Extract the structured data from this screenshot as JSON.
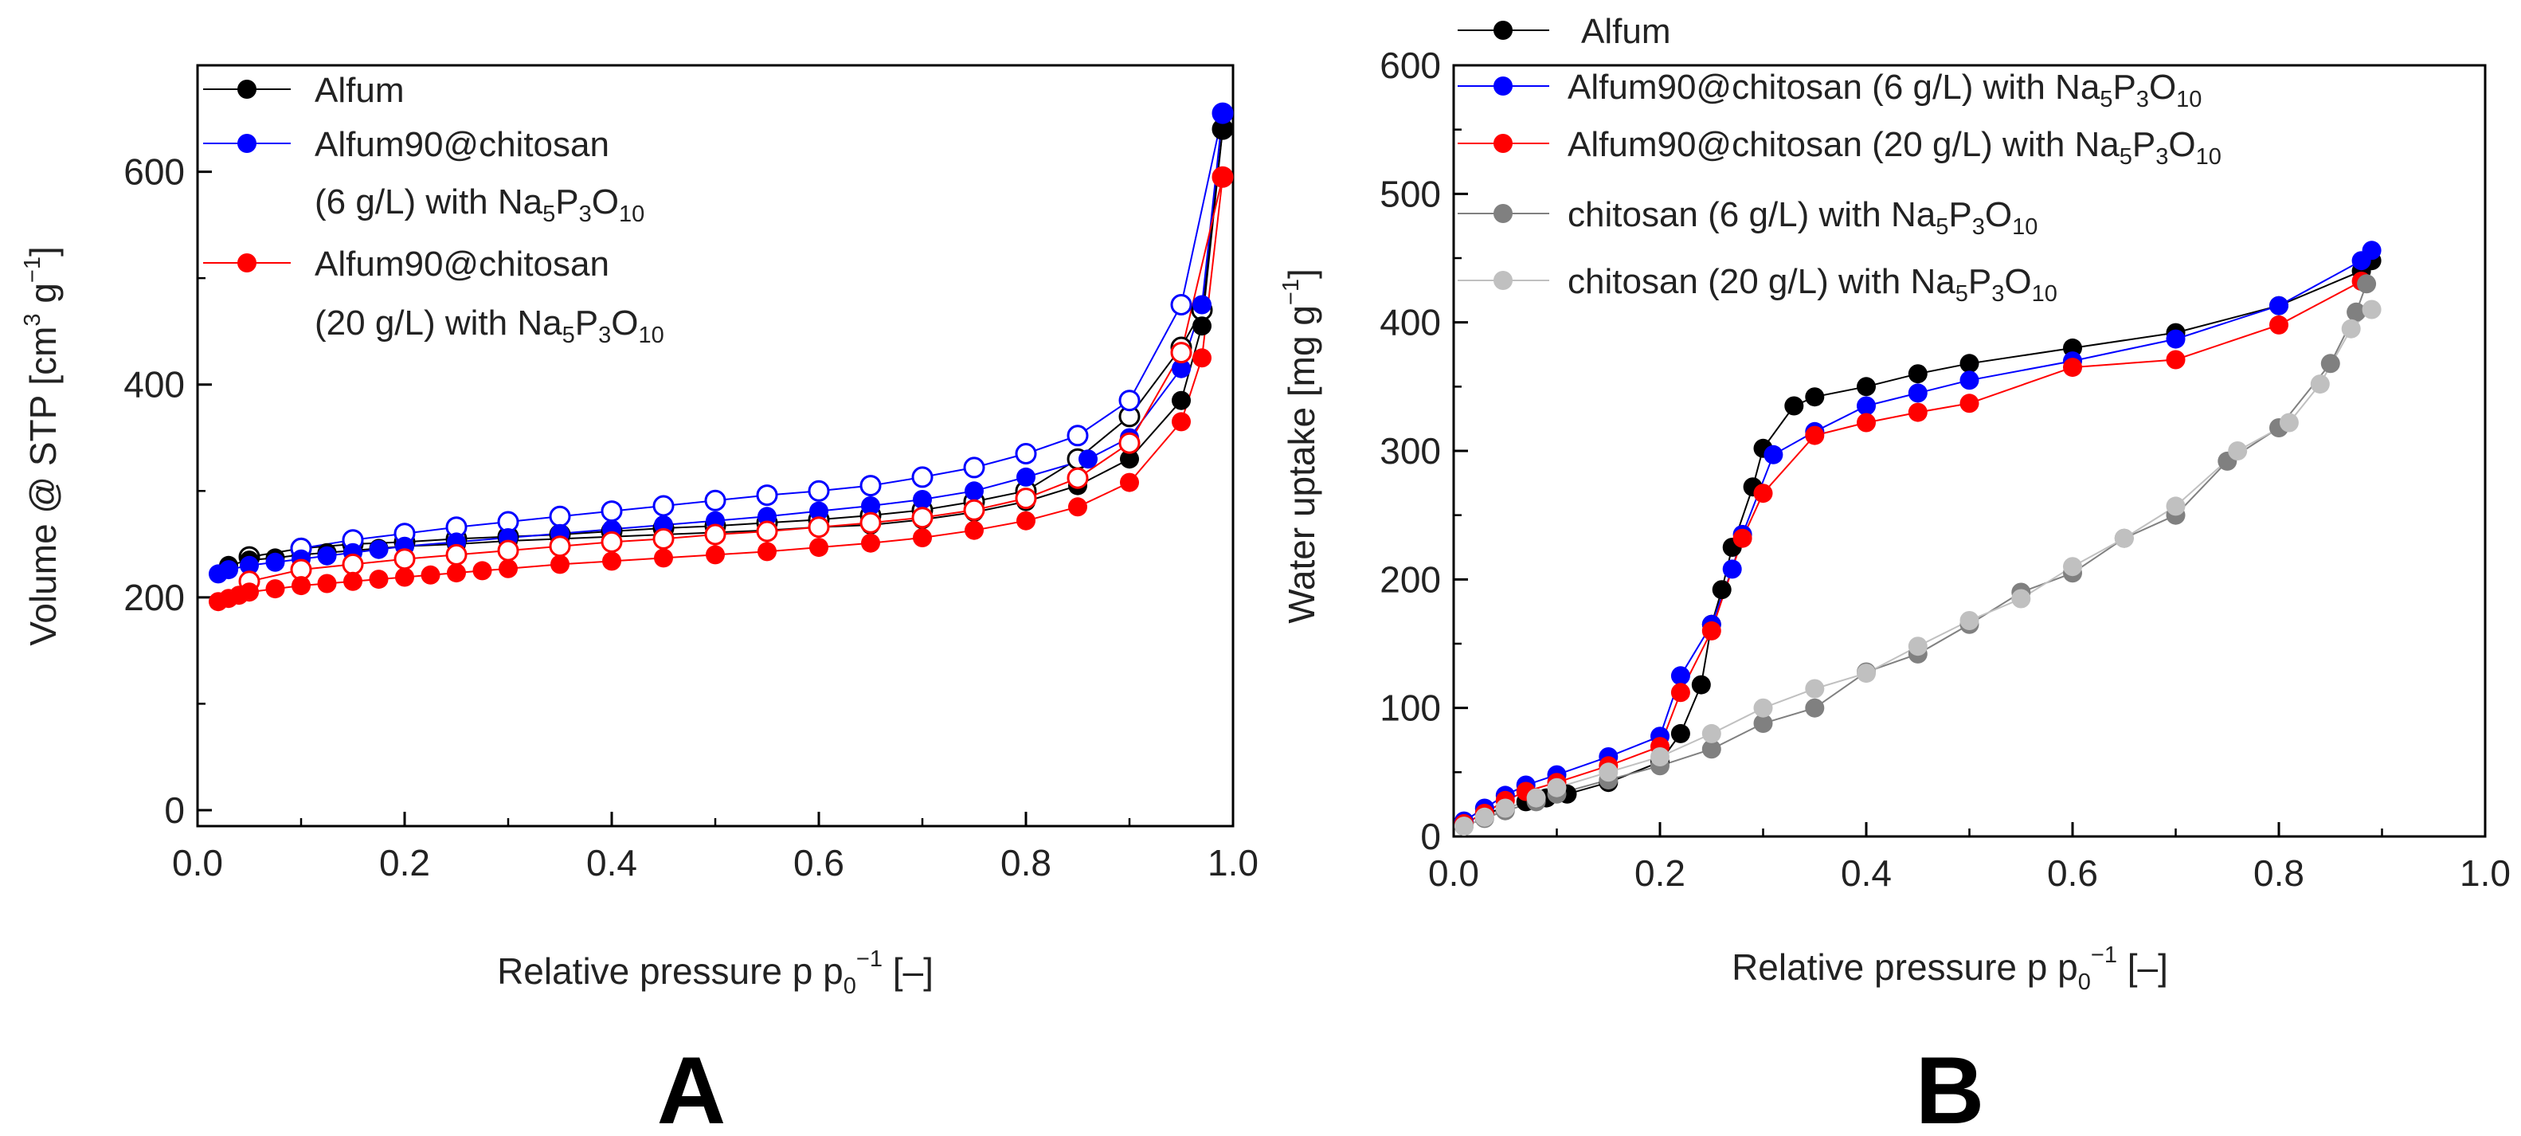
{
  "chart_data": [
    {
      "panel": "A",
      "type": "scatter",
      "xlabel": "Relative pressure p p0−1 [–]",
      "ylabel": "Volume @ STP [cm3 g−1]",
      "xlim": [
        0,
        1.0
      ],
      "ylim": [
        -15,
        700
      ],
      "x_ticks": [
        "0.0",
        "0.2",
        "0.4",
        "0.6",
        "0.8",
        "1.0"
      ],
      "y_ticks": [
        "0",
        "200",
        "400",
        "600"
      ],
      "grid": false,
      "legend_position": "top-left",
      "series": [
        {
          "name": "Alfum",
          "color": "#000000",
          "adsorption": {
            "x": [
              0.03,
              0.05,
              0.075,
              0.1,
              0.125,
              0.15,
              0.175,
              0.2,
              0.25,
              0.3,
              0.35,
              0.4,
              0.45,
              0.5,
              0.55,
              0.6,
              0.65,
              0.7,
              0.75,
              0.8,
              0.85,
              0.9,
              0.95,
              0.97,
              0.99
            ],
            "y": [
              230,
              235,
              237,
              240,
              242,
              244,
              246,
              248,
              250,
              253,
              255,
              257,
              259,
              261,
              263,
              266,
              268,
              273,
              280,
              290,
              305,
              330,
              385,
              455,
              640
            ]
          },
          "desorption": {
            "x": [
              0.99,
              0.97,
              0.95,
              0.9,
              0.85,
              0.8,
              0.75,
              0.7,
              0.65,
              0.6,
              0.55,
              0.5,
              0.45,
              0.4,
              0.35,
              0.3,
              0.25,
              0.2,
              0.15,
              0.1,
              0.05
            ],
            "y": [
              640,
              470,
              435,
              370,
              330,
              300,
              290,
              282,
              277,
              273,
              270,
              267,
              265,
              262,
              259,
              257,
              255,
              252,
              250,
              246,
              238
            ]
          }
        },
        {
          "name": "Alfum90@chitosan (6 g/L) with Na5P3O10",
          "color": "#0000ff",
          "adsorption": {
            "x": [
              0.02,
              0.03,
              0.05,
              0.075,
              0.1,
              0.125,
              0.15,
              0.175,
              0.2,
              0.25,
              0.3,
              0.35,
              0.4,
              0.45,
              0.5,
              0.55,
              0.6,
              0.65,
              0.7,
              0.75,
              0.8,
              0.86,
              0.9,
              0.95,
              0.97,
              0.99
            ],
            "y": [
              222,
              226,
              230,
              233,
              236,
              239,
              242,
              245,
              248,
              252,
              256,
              260,
              264,
              268,
              272,
              276,
              281,
              286,
              292,
              300,
              313,
              330,
              350,
              415,
              475,
              655
            ]
          },
          "desorption": {
            "x": [
              0.99,
              0.95,
              0.9,
              0.85,
              0.8,
              0.75,
              0.7,
              0.65,
              0.6,
              0.55,
              0.5,
              0.45,
              0.4,
              0.35,
              0.3,
              0.25,
              0.2,
              0.15,
              0.1
            ],
            "y": [
              655,
              475,
              385,
              352,
              335,
              322,
              313,
              305,
              300,
              296,
              291,
              286,
              281,
              276,
              271,
              266,
              260,
              254,
              246
            ]
          }
        },
        {
          "name": "Alfum90@chitosan (20 g/L) with Na5P3O10",
          "color": "#ff0000",
          "adsorption": {
            "x": [
              0.02,
              0.03,
              0.04,
              0.05,
              0.075,
              0.1,
              0.125,
              0.15,
              0.175,
              0.2,
              0.225,
              0.25,
              0.275,
              0.3,
              0.35,
              0.4,
              0.45,
              0.5,
              0.55,
              0.6,
              0.65,
              0.7,
              0.75,
              0.8,
              0.85,
              0.9,
              0.95,
              0.97,
              0.99
            ],
            "y": [
              196,
              199,
              202,
              205,
              208,
              211,
              213,
              215,
              217,
              219,
              221,
              223,
              225,
              227,
              231,
              234,
              237,
              240,
              243,
              247,
              251,
              256,
              263,
              272,
              285,
              308,
              365,
              425,
              595
            ]
          },
          "desorption": {
            "x": [
              0.99,
              0.95,
              0.9,
              0.85,
              0.8,
              0.75,
              0.7,
              0.65,
              0.6,
              0.55,
              0.5,
              0.45,
              0.4,
              0.35,
              0.3,
              0.25,
              0.2,
              0.15,
              0.1,
              0.05
            ],
            "y": [
              595,
              430,
              345,
              312,
              293,
              282,
              275,
              270,
              266,
              262,
              259,
              255,
              252,
              248,
              244,
              240,
              236,
              231,
              226,
              215
            ]
          }
        }
      ]
    },
    {
      "panel": "B",
      "type": "scatter",
      "xlabel": "Relative pressure p p0−1 [–]",
      "ylabel": "Water uptake [mg g−1]",
      "xlim": [
        0,
        1.0
      ],
      "ylim": [
        0,
        600
      ],
      "x_ticks": [
        "0.0",
        "0.2",
        "0.4",
        "0.6",
        "0.8",
        "1.0"
      ],
      "y_ticks": [
        "0",
        "100",
        "200",
        "300",
        "400",
        "500",
        "600"
      ],
      "grid": false,
      "legend_position": "top-left",
      "series": [
        {
          "name": "Alfum",
          "color": "#000000",
          "x": [
            0.01,
            0.03,
            0.05,
            0.07,
            0.09,
            0.11,
            0.15,
            0.2,
            0.22,
            0.24,
            0.25,
            0.26,
            0.27,
            0.29,
            0.3,
            0.33,
            0.35,
            0.4,
            0.45,
            0.5,
            0.6,
            0.7,
            0.8,
            0.88,
            0.89
          ],
          "y": [
            10,
            18,
            22,
            27,
            30,
            33,
            42,
            58,
            80,
            118,
            165,
            192,
            225,
            272,
            302,
            335,
            342,
            350,
            360,
            368,
            380,
            392,
            413,
            440,
            448
          ]
        },
        {
          "name": "Alfum90@chitosan (6 g/L) with Na5P3O10",
          "color": "#0000ff",
          "x": [
            0.01,
            0.03,
            0.05,
            0.07,
            0.1,
            0.15,
            0.2,
            0.22,
            0.25,
            0.27,
            0.28,
            0.31,
            0.35,
            0.4,
            0.45,
            0.5,
            0.6,
            0.7,
            0.8,
            0.88,
            0.89
          ],
          "y": [
            12,
            22,
            32,
            40,
            48,
            62,
            78,
            125,
            165,
            208,
            235,
            297,
            315,
            335,
            345,
            355,
            370,
            387,
            413,
            448,
            456
          ]
        },
        {
          "name": "Alfum90@chitosan (20 g/L) with Na5P3O10",
          "color": "#ff0000",
          "x": [
            0.01,
            0.03,
            0.05,
            0.07,
            0.1,
            0.15,
            0.2,
            0.22,
            0.25,
            0.28,
            0.3,
            0.35,
            0.4,
            0.45,
            0.5,
            0.6,
            0.7,
            0.8,
            0.88
          ],
          "y": [
            10,
            18,
            28,
            35,
            42,
            55,
            70,
            112,
            160,
            232,
            267,
            312,
            322,
            330,
            337,
            365,
            371,
            398,
            432
          ]
        },
        {
          "name": "chitosan (6 g/L) with Na5P3O10",
          "color": "#808080",
          "x": [
            0.01,
            0.03,
            0.05,
            0.08,
            0.1,
            0.15,
            0.2,
            0.25,
            0.3,
            0.35,
            0.4,
            0.45,
            0.5,
            0.55,
            0.6,
            0.65,
            0.7,
            0.75,
            0.8,
            0.85,
            0.875,
            0.885
          ],
          "y": [
            8,
            14,
            20,
            27,
            33,
            44,
            55,
            68,
            88,
            100,
            128,
            142,
            165,
            190,
            205,
            232,
            250,
            292,
            318,
            368,
            408,
            430
          ]
        },
        {
          "name": "chitosan (20 g/L) with Na5P3O10",
          "color": "#c0c0c0",
          "x": [
            0.01,
            0.03,
            0.05,
            0.08,
            0.1,
            0.15,
            0.2,
            0.25,
            0.3,
            0.35,
            0.4,
            0.45,
            0.5,
            0.55,
            0.6,
            0.65,
            0.7,
            0.76,
            0.81,
            0.84,
            0.87,
            0.89
          ],
          "y": [
            8,
            15,
            22,
            30,
            38,
            50,
            62,
            80,
            100,
            115,
            127,
            148,
            168,
            185,
            210,
            232,
            257,
            300,
            322,
            352,
            395,
            410
          ]
        }
      ]
    }
  ],
  "legendA": [
    {
      "line1": "Alfum",
      "line2": ""
    },
    {
      "line1": "Alfum90@chitosan",
      "line2": "(6 g/L) with Na",
      "s1": "5",
      "p": "P",
      "s2": "3",
      "o": "O",
      "s3": "10"
    },
    {
      "line1": "Alfum90@chitosan",
      "line2": "(20 g/L) with Na",
      "s1": "5",
      "p": "P",
      "s2": "3",
      "o": "O",
      "s3": "10"
    }
  ],
  "legendB": [
    {
      "text": "Alfum"
    },
    {
      "text": "Alfum90@chitosan (6 g/L) with Na",
      "s1": "5",
      "p": "P",
      "s2": "3",
      "o": "O",
      "s3": "10"
    },
    {
      "text": "Alfum90@chitosan (20 g/L) with Na",
      "s1": "5",
      "p": "P",
      "s2": "3",
      "o": "O",
      "s3": "10"
    },
    {
      "text": "chitosan (6 g/L) with Na",
      "s1": "5",
      "p": "P",
      "s2": "3",
      "o": "O",
      "s3": "10"
    },
    {
      "text": "chitosan (20 g/L) with Na",
      "s1": "5",
      "p": "P",
      "s2": "3",
      "o": "O",
      "s3": "10"
    }
  ],
  "axis_text": {
    "x_main": "Relative pressure p p",
    "x_sub": "0",
    "x_sup": "−1",
    "x_end": " [–]",
    "yA_main": "Volume @ STP [cm",
    "yA_sup1": "3",
    "yA_mid": " g",
    "yA_sup2": "−1",
    "yA_end": "]",
    "yB_main": "Water uptake [mg g",
    "yB_sup": "−1",
    "yB_end": "]"
  },
  "panels": {
    "A": "A",
    "B": "B"
  }
}
